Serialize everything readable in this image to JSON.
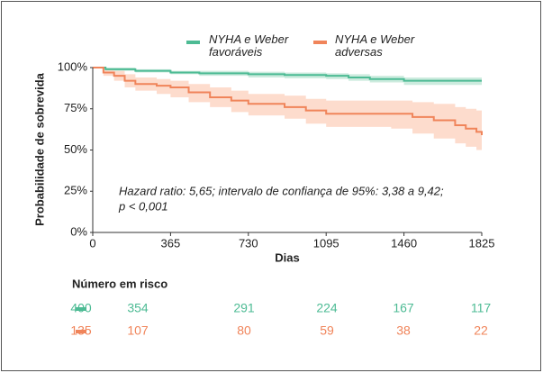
{
  "chart_data": {
    "type": "line",
    "step": true,
    "xlabel": "Dias",
    "ylabel": "Probabilidade de sobrevida",
    "xlim": [
      0,
      1825
    ],
    "xticks": [
      0,
      365,
      730,
      1095,
      1460,
      1825
    ],
    "ylim": [
      0,
      100
    ],
    "yticks": [
      {
        "value": 0,
        "label": "0%"
      },
      {
        "value": 25,
        "label": "25%"
      },
      {
        "value": 50,
        "label": "50%"
      },
      {
        "value": 75,
        "label": "75%"
      },
      {
        "value": 100,
        "label": "100%"
      }
    ],
    "annotation": [
      "Hazard ratio: 5,65; intervalo de confiança de 95%: 3,38 a 9,42;",
      "p < 0,001"
    ],
    "series": [
      {
        "name": "NYHA e Weber favoráveis",
        "color": "#4dbb94",
        "band_color": "#bfe6d6",
        "x": [
          0,
          60,
          200,
          365,
          500,
          730,
          900,
          1095,
          1200,
          1300,
          1460,
          1825
        ],
        "values": [
          100,
          99,
          98,
          97,
          96.5,
          96,
          95.5,
          95,
          94,
          93,
          92,
          92
        ],
        "lower": [
          100,
          98,
          97,
          96,
          95,
          94,
          93.5,
          93,
          92,
          91,
          89.5,
          89
        ],
        "upper": [
          100,
          100,
          99,
          98,
          98,
          97.5,
          97,
          96.5,
          96,
          95,
          94,
          94.5
        ]
      },
      {
        "name": "NYHA e Weber adversas",
        "color": "#f0845a",
        "band_color": "#fcd3c0",
        "x": [
          0,
          50,
          100,
          150,
          200,
          300,
          365,
          450,
          550,
          650,
          730,
          900,
          1000,
          1095,
          1400,
          1500,
          1600,
          1700,
          1750,
          1800,
          1825
        ],
        "values": [
          100,
          97,
          95,
          92,
          90,
          89,
          88,
          85,
          82,
          80,
          78,
          76,
          74,
          72,
          72,
          70,
          68,
          65,
          63,
          61,
          59
        ],
        "lower": [
          100,
          95,
          92,
          88,
          86,
          84,
          82,
          79,
          76,
          73,
          71,
          69,
          66,
          64,
          63,
          60,
          57,
          54,
          52,
          50,
          48
        ],
        "upper": [
          100,
          99,
          98,
          96,
          94,
          93,
          92,
          90,
          88,
          86,
          84,
          83,
          81,
          80,
          80,
          79,
          78,
          76,
          75,
          74,
          73
        ]
      }
    ],
    "risk_table": {
      "title": "Número em risco",
      "rows": [
        {
          "color": "#4dbb94",
          "values": [
            400,
            354,
            291,
            224,
            167,
            117
          ]
        },
        {
          "color": "#f0845a",
          "values": [
            135,
            107,
            80,
            59,
            38,
            22
          ]
        }
      ]
    }
  }
}
